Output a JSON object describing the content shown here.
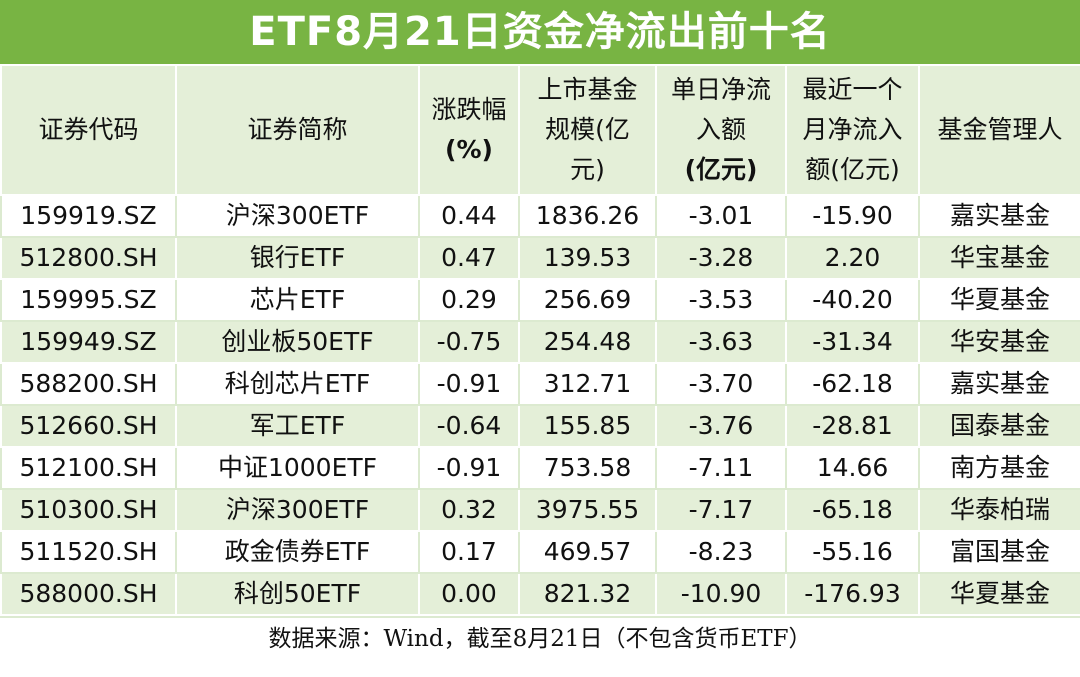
{
  "title": "ETF8月21日资金净流出前十名",
  "table": {
    "header": [
      [
        "证券代码"
      ],
      [
        "证券简称"
      ],
      [
        "涨跌幅",
        "(%)"
      ],
      [
        "上市基金",
        "规模(亿",
        "元)"
      ],
      [
        "单日净流",
        "入额",
        "(亿元)"
      ],
      [
        "最近一个",
        "月净流入",
        "额(亿元)"
      ],
      [
        "基金管理人"
      ]
    ],
    "rows": [
      [
        "159919.SZ",
        "沪深300ETF",
        "0.44",
        "1836.26",
        "-3.01",
        "-15.90",
        "嘉实基金"
      ],
      [
        "512800.SH",
        "银行ETF",
        "0.47",
        "139.53",
        "-3.28",
        "2.20",
        "华宝基金"
      ],
      [
        "159995.SZ",
        "芯片ETF",
        "0.29",
        "256.69",
        "-3.53",
        "-40.20",
        "华夏基金"
      ],
      [
        "159949.SZ",
        "创业板50ETF",
        "-0.75",
        "254.48",
        "-3.63",
        "-31.34",
        "华安基金"
      ],
      [
        "588200.SH",
        "科创芯片ETF",
        "-0.91",
        "312.71",
        "-3.70",
        "-62.18",
        "嘉实基金"
      ],
      [
        "512660.SH",
        "军工ETF",
        "-0.64",
        "155.85",
        "-3.76",
        "-28.81",
        "国泰基金"
      ],
      [
        "512100.SH",
        "中证1000ETF",
        "-0.91",
        "753.58",
        "-7.11",
        "14.66",
        "南方基金"
      ],
      [
        "510300.SH",
        "沪深300ETF",
        "0.32",
        "3975.55",
        "-7.17",
        "-65.18",
        "华泰柏瑞"
      ],
      [
        "511520.SH",
        "政金债券ETF",
        "0.17",
        "469.57",
        "-8.23",
        "-55.16",
        "富国基金"
      ],
      [
        "588000.SH",
        "科创50ETF",
        "0.00",
        "821.32",
        "-10.90",
        "-176.93",
        "华夏基金"
      ]
    ]
  },
  "footer": "数据来源：Wind，截至8月21日（不包含货币ETF）"
}
